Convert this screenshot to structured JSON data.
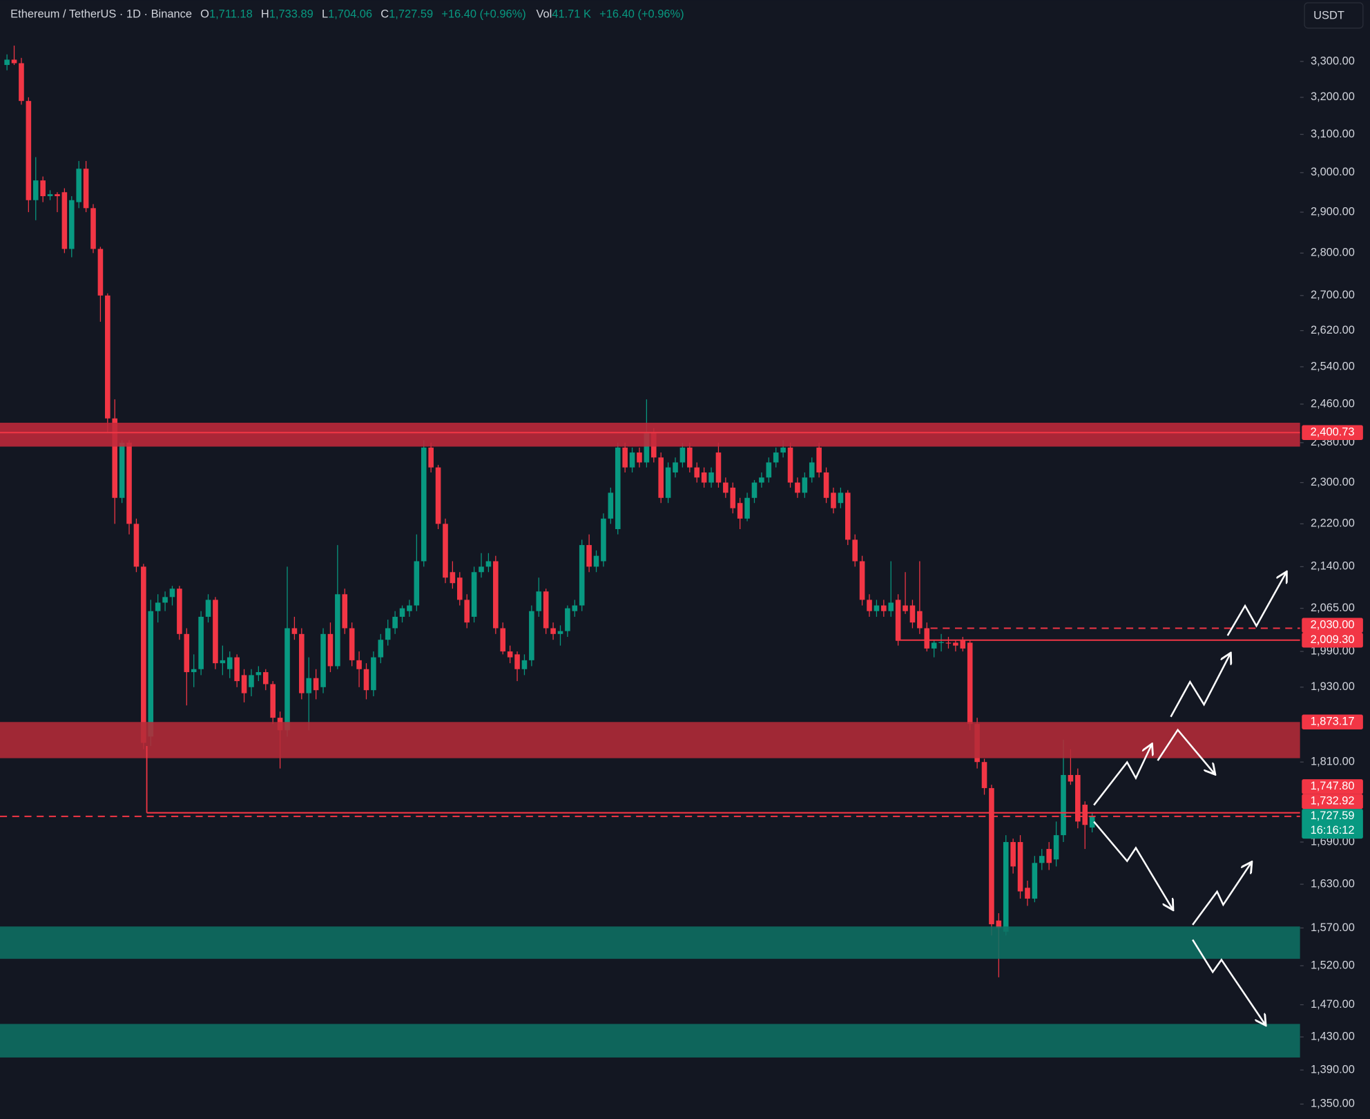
{
  "header": {
    "symbol": "Ethereum / TetherUS · 1D · Binance",
    "o_label": "O",
    "open": "1,711.18",
    "h_label": "H",
    "high": "1,733.89",
    "l_label": "L",
    "low": "1,704.06",
    "c_label": "C",
    "close": "1,727.59",
    "change": "+16.40 (+0.96%)",
    "vol_label": "Vol",
    "volume": "41.71 K",
    "vol_change": "+16.40 (+0.96%)"
  },
  "currency": "USDT",
  "chart_data": {
    "type": "candlestick",
    "log_scale": true,
    "up_color": "#089981",
    "down_color": "#f23645",
    "ylim": [
      1333,
      3478
    ],
    "yticks": [
      {
        "value": 3300,
        "label": "3,300.00"
      },
      {
        "value": 3200,
        "label": "3,200.00"
      },
      {
        "value": 3100,
        "label": "3,100.00"
      },
      {
        "value": 3000,
        "label": "3,000.00"
      },
      {
        "value": 2900,
        "label": "2,900.00"
      },
      {
        "value": 2800,
        "label": "2,800.00"
      },
      {
        "value": 2700,
        "label": "2,700.00"
      },
      {
        "value": 2620,
        "label": "2,620.00"
      },
      {
        "value": 2540,
        "label": "2,540.00"
      },
      {
        "value": 2460,
        "label": "2,460.00"
      },
      {
        "value": 2380,
        "label": "2,380.00"
      },
      {
        "value": 2300,
        "label": "2,300.00"
      },
      {
        "value": 2220,
        "label": "2,220.00"
      },
      {
        "value": 2140,
        "label": "2,140.00"
      },
      {
        "value": 2065,
        "label": "2,065.00"
      },
      {
        "value": 1990,
        "label": "1,990.00"
      },
      {
        "value": 1930,
        "label": "1,930.00"
      },
      {
        "value": 1810,
        "label": "1,810.00"
      },
      {
        "value": 1690,
        "label": "1,690.00"
      },
      {
        "value": 1630,
        "label": "1,630.00"
      },
      {
        "value": 1570,
        "label": "1,570.00"
      },
      {
        "value": 1520,
        "label": "1,520.00"
      },
      {
        "value": 1470,
        "label": "1,470.00"
      },
      {
        "value": 1430,
        "label": "1,430.00"
      },
      {
        "value": 1390,
        "label": "1,390.00"
      },
      {
        "value": 1350,
        "label": "1,350.00"
      }
    ],
    "zones": [
      {
        "top": 2421,
        "bottom": 2372,
        "color": "#c0293a"
      },
      {
        "top": 1873.17,
        "bottom": 1816,
        "color": "#b42b38"
      },
      {
        "top": 1572,
        "bottom": 1529,
        "color": "#0e7163"
      },
      {
        "top": 1446,
        "bottom": 1405,
        "color": "#0e7163"
      }
    ],
    "lines": [
      {
        "value": 2400.73,
        "style": "solid",
        "color": "#f23645"
      },
      {
        "value": 2030,
        "style": "dashed",
        "color": "#f23645"
      },
      {
        "value": 2009.3,
        "style": "solid",
        "color": "#f23645"
      },
      {
        "value": 1732.92,
        "style": "solid",
        "color": "#f23645"
      },
      {
        "value": 1727.59,
        "style": "dashed",
        "color": "#f23645"
      }
    ],
    "price_labels": [
      {
        "value": 2400.73,
        "label": "2,400.73",
        "color": "#f23645"
      },
      {
        "value": 2030,
        "label": "2,030.00",
        "color": "#f23645"
      },
      {
        "value": 2009.3,
        "label": "2,009.30",
        "color": "#f23645"
      },
      {
        "value": 1873.17,
        "label": "1,873.17",
        "color": "#f23645"
      },
      {
        "value": 1747.8,
        "label": "1,747.80",
        "color": "#f23645"
      },
      {
        "value": 1732.92,
        "label": "1,732.92",
        "color": "#f23645"
      },
      {
        "value": 1727.59,
        "label": "1,727.59",
        "color": "#089981",
        "countdown": "16:16:12"
      }
    ],
    "ohlc": [
      [
        3290,
        3320,
        3275,
        3305
      ],
      [
        3305,
        3345,
        3290,
        3295
      ],
      [
        3295,
        3310,
        3180,
        3190
      ],
      [
        3190,
        3200,
        2900,
        2930
      ],
      [
        2930,
        3040,
        2880,
        2980
      ],
      [
        2980,
        2990,
        2925,
        2940
      ],
      [
        2940,
        2955,
        2930,
        2945
      ],
      [
        2945,
        2950,
        2900,
        2940
      ],
      [
        2950,
        2960,
        2800,
        2810
      ],
      [
        2810,
        2940,
        2790,
        2930
      ],
      [
        2925,
        3030,
        2910,
        3010
      ],
      [
        3010,
        3030,
        2900,
        2910
      ],
      [
        2910,
        2920,
        2800,
        2810
      ],
      [
        2810,
        2815,
        2640,
        2700
      ],
      [
        2700,
        2705,
        2400,
        2430
      ],
      [
        2430,
        2470,
        2220,
        2270
      ],
      [
        2270,
        2385,
        2260,
        2380
      ],
      [
        2380,
        2385,
        2200,
        2220
      ],
      [
        2220,
        2230,
        2130,
        2140
      ],
      [
        2140,
        2145,
        1830,
        1840
      ],
      [
        1850,
        2080,
        1835,
        2060
      ],
      [
        2060,
        2090,
        2040,
        2075
      ],
      [
        2075,
        2095,
        2060,
        2085
      ],
      [
        2085,
        2105,
        2070,
        2100
      ],
      [
        2100,
        2105,
        2010,
        2020
      ],
      [
        2020,
        2030,
        1900,
        1955
      ],
      [
        1955,
        1985,
        1930,
        1960
      ],
      [
        1960,
        2060,
        1950,
        2050
      ],
      [
        2050,
        2090,
        2040,
        2080
      ],
      [
        2080,
        2085,
        1960,
        1970
      ],
      [
        1970,
        2000,
        1950,
        1975
      ],
      [
        1960,
        1990,
        1945,
        1980
      ],
      [
        1980,
        1985,
        1930,
        1940
      ],
      [
        1950,
        1960,
        1905,
        1920
      ],
      [
        1930,
        1960,
        1915,
        1950
      ],
      [
        1950,
        1965,
        1940,
        1955
      ],
      [
        1955,
        1960,
        1925,
        1935
      ],
      [
        1935,
        1940,
        1870,
        1880
      ],
      [
        1880,
        1890,
        1800,
        1860
      ],
      [
        1860,
        2140,
        1850,
        2030
      ],
      [
        2030,
        2050,
        2010,
        2020
      ],
      [
        2020,
        2030,
        1910,
        1920
      ],
      [
        1920,
        1980,
        1860,
        1945
      ],
      [
        1945,
        1960,
        1910,
        1925
      ],
      [
        1930,
        2030,
        1920,
        2020
      ],
      [
        2020,
        2040,
        1955,
        1965
      ],
      [
        1965,
        2180,
        1960,
        2090
      ],
      [
        2090,
        2100,
        2020,
        2030
      ],
      [
        2030,
        2040,
        1965,
        1975
      ],
      [
        1975,
        1990,
        1930,
        1960
      ],
      [
        1960,
        1970,
        1910,
        1925
      ],
      [
        1925,
        1990,
        1915,
        1980
      ],
      [
        1980,
        2020,
        1970,
        2010
      ],
      [
        2010,
        2045,
        2000,
        2030
      ],
      [
        2030,
        2060,
        2020,
        2050
      ],
      [
        2050,
        2070,
        2040,
        2065
      ],
      [
        2060,
        2080,
        2050,
        2070
      ],
      [
        2070,
        2200,
        2060,
        2150
      ],
      [
        2150,
        2385,
        2140,
        2370
      ],
      [
        2370,
        2380,
        2320,
        2330
      ],
      [
        2330,
        2335,
        2210,
        2220
      ],
      [
        2220,
        2230,
        2110,
        2120
      ],
      [
        2130,
        2150,
        2100,
        2110
      ],
      [
        2120,
        2130,
        2070,
        2080
      ],
      [
        2080,
        2090,
        2030,
        2040
      ],
      [
        2050,
        2140,
        2040,
        2130
      ],
      [
        2130,
        2165,
        2120,
        2140
      ],
      [
        2140,
        2165,
        2130,
        2150
      ],
      [
        2150,
        2160,
        2020,
        2030
      ],
      [
        2030,
        2040,
        1985,
        1990
      ],
      [
        1990,
        2000,
        1970,
        1980
      ],
      [
        1985,
        1990,
        1940,
        1960
      ],
      [
        1960,
        1985,
        1950,
        1975
      ],
      [
        1975,
        2070,
        1965,
        2060
      ],
      [
        2060,
        2120,
        2050,
        2095
      ],
      [
        2095,
        2100,
        2020,
        2030
      ],
      [
        2030,
        2040,
        2010,
        2020
      ],
      [
        2020,
        2035,
        2000,
        2025
      ],
      [
        2025,
        2070,
        2015,
        2065
      ],
      [
        2060,
        2080,
        2050,
        2070
      ],
      [
        2070,
        2190,
        2060,
        2180
      ],
      [
        2180,
        2200,
        2130,
        2140
      ],
      [
        2140,
        2170,
        2130,
        2160
      ],
      [
        2150,
        2240,
        2140,
        2230
      ],
      [
        2230,
        2290,
        2220,
        2280
      ],
      [
        2210,
        2380,
        2200,
        2370
      ],
      [
        2370,
        2380,
        2320,
        2330
      ],
      [
        2330,
        2370,
        2320,
        2360
      ],
      [
        2360,
        2370,
        2330,
        2340
      ],
      [
        2340,
        2470,
        2330,
        2400
      ],
      [
        2400,
        2410,
        2340,
        2350
      ],
      [
        2350,
        2360,
        2260,
        2270
      ],
      [
        2270,
        2340,
        2260,
        2330
      ],
      [
        2320,
        2350,
        2310,
        2340
      ],
      [
        2340,
        2380,
        2330,
        2370
      ],
      [
        2370,
        2380,
        2320,
        2330
      ],
      [
        2330,
        2340,
        2300,
        2310
      ],
      [
        2320,
        2330,
        2290,
        2300
      ],
      [
        2300,
        2330,
        2290,
        2320
      ],
      [
        2360,
        2380,
        2290,
        2300
      ],
      [
        2300,
        2310,
        2270,
        2280
      ],
      [
        2290,
        2300,
        2240,
        2250
      ],
      [
        2260,
        2270,
        2210,
        2230
      ],
      [
        2230,
        2280,
        2225,
        2270
      ],
      [
        2270,
        2305,
        2260,
        2300
      ],
      [
        2300,
        2320,
        2290,
        2310
      ],
      [
        2310,
        2350,
        2300,
        2340
      ],
      [
        2340,
        2370,
        2330,
        2360
      ],
      [
        2360,
        2385,
        2350,
        2370
      ],
      [
        2370,
        2380,
        2290,
        2300
      ],
      [
        2300,
        2310,
        2270,
        2280
      ],
      [
        2280,
        2320,
        2270,
        2310
      ],
      [
        2310,
        2350,
        2300,
        2340
      ],
      [
        2370,
        2380,
        2310,
        2320
      ],
      [
        2320,
        2330,
        2260,
        2270
      ],
      [
        2280,
        2290,
        2240,
        2250
      ],
      [
        2260,
        2290,
        2250,
        2280
      ],
      [
        2280,
        2285,
        2180,
        2190
      ],
      [
        2190,
        2200,
        2140,
        2150
      ],
      [
        2150,
        2160,
        2070,
        2080
      ],
      [
        2080,
        2090,
        2050,
        2060
      ],
      [
        2060,
        2080,
        2050,
        2070
      ],
      [
        2070,
        2080,
        2050,
        2060
      ],
      [
        2060,
        2150,
        2050,
        2075
      ],
      [
        2080,
        2090,
        2000,
        2010
      ],
      [
        2070,
        2130,
        2055,
        2060
      ],
      [
        2070,
        2080,
        2030,
        2040
      ],
      [
        2060,
        2150,
        2020,
        2030
      ],
      [
        2030,
        2040,
        1990,
        1995
      ],
      [
        1995,
        2010,
        1980,
        2005
      ],
      [
        2005,
        2020,
        1990,
        2006
      ],
      [
        2005,
        2015,
        1995,
        2004
      ],
      [
        2005,
        2010,
        1990,
        2000
      ],
      [
        2010,
        2015,
        1990,
        1995
      ],
      [
        2005,
        2010,
        1860,
        1870
      ],
      [
        1870,
        1880,
        1800,
        1810
      ],
      [
        1810,
        1815,
        1760,
        1770
      ],
      [
        1770,
        1775,
        1560,
        1575
      ],
      [
        1580,
        1590,
        1505,
        1570
      ],
      [
        1565,
        1700,
        1560,
        1690
      ],
      [
        1690,
        1695,
        1645,
        1655
      ],
      [
        1690,
        1700,
        1610,
        1620
      ],
      [
        1625,
        1635,
        1600,
        1610
      ],
      [
        1610,
        1670,
        1605,
        1660
      ],
      [
        1660,
        1680,
        1650,
        1670
      ],
      [
        1680,
        1690,
        1650,
        1660
      ],
      [
        1665,
        1720,
        1655,
        1700
      ],
      [
        1700,
        1845,
        1690,
        1790
      ],
      [
        1790,
        1830,
        1775,
        1780
      ],
      [
        1790,
        1800,
        1710,
        1720
      ],
      [
        1745,
        1750,
        1680,
        1715
      ],
      [
        1711.18,
        1733.89,
        1704.06,
        1727.59
      ]
    ]
  }
}
